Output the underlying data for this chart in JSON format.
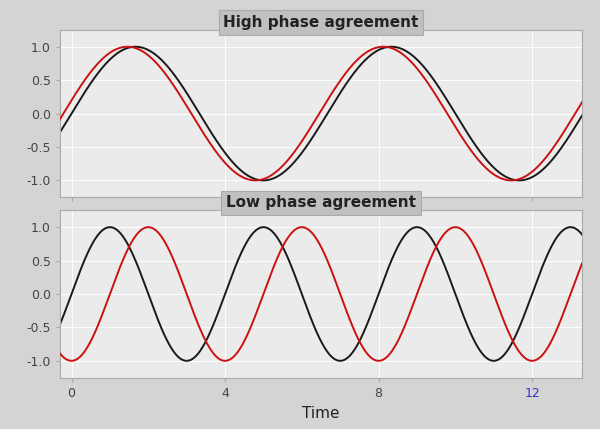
{
  "title_high": "High phase agreement",
  "title_low": "Low phase agreement",
  "xlabel": "Time",
  "x_start": -0.5,
  "x_end": 13.5,
  "x_lim_left": -0.3,
  "x_lim_right": 13.3,
  "n_points": 2000,
  "high_phase_black": 0.0,
  "high_phase_red": 0.2,
  "low_phase_black": 0.0,
  "low_phase_red": -1.5707963267948966,
  "frequency_high": 0.9424777960769379,
  "frequency_low": 1.5707963267948966,
  "yticks": [
    -1.0,
    -0.5,
    0.0,
    0.5,
    1.0
  ],
  "xticks": [
    0,
    4,
    8,
    12
  ],
  "color_black": "#1a1a1a",
  "color_red": "#cc1111",
  "fig_bg_color": "#d4d4d4",
  "title_bg_color": "#c0c0c0",
  "plot_bg_color": "#ebebeb",
  "title_fontsize": 11,
  "axis_label_fontsize": 11,
  "tick_fontsize": 9,
  "line_width": 1.4,
  "grid_color": "#ffffff",
  "grid_linewidth": 0.7,
  "xtick_color_default": "#444444",
  "xtick_12_color": "#3333cc",
  "ylim": [
    -1.25,
    1.25
  ]
}
